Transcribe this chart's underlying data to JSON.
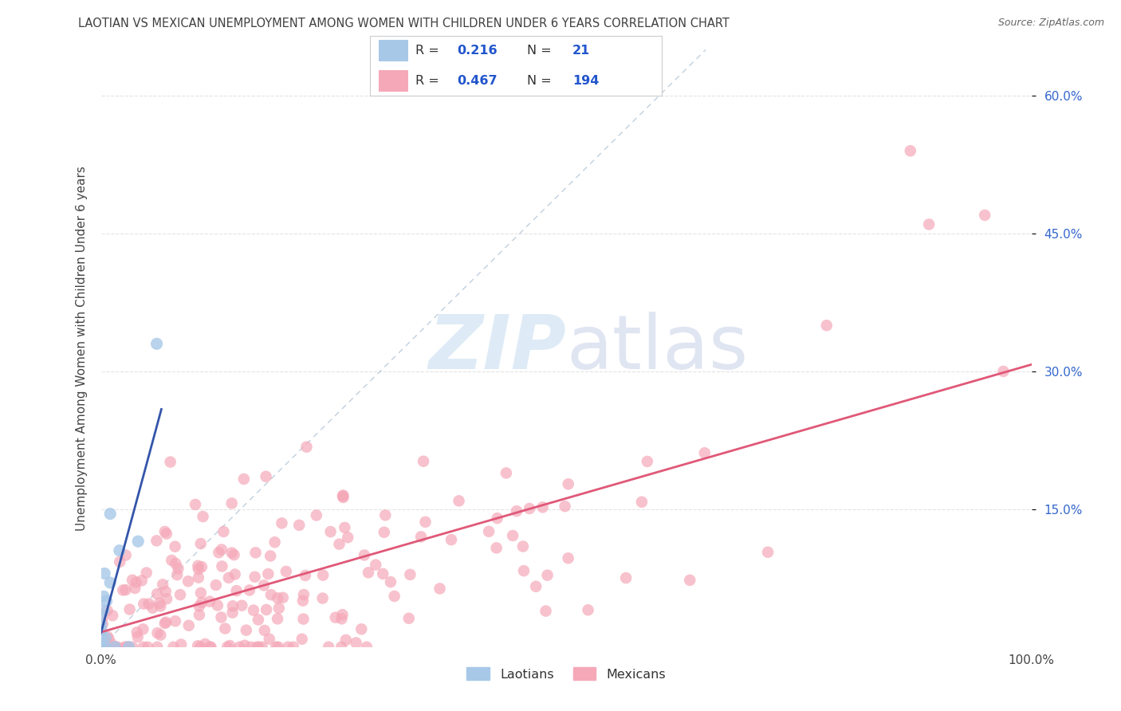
{
  "title": "LAOTIAN VS MEXICAN UNEMPLOYMENT AMONG WOMEN WITH CHILDREN UNDER 6 YEARS CORRELATION CHART",
  "source": "Source: ZipAtlas.com",
  "ylabel": "Unemployment Among Women with Children Under 6 years",
  "xlim": [
    0,
    1.0
  ],
  "ylim": [
    0,
    0.65
  ],
  "xtick_positions": [
    0.0,
    1.0
  ],
  "xtick_labels": [
    "0.0%",
    "100.0%"
  ],
  "ytick_positions": [
    0.15,
    0.3,
    0.45,
    0.6
  ],
  "ytick_labels": [
    "15.0%",
    "30.0%",
    "45.0%",
    "60.0%"
  ],
  "laotian_color": "#a8c8e8",
  "mexican_color": "#f5a8b8",
  "trend_blue_color": "#3355aa",
  "trend_pink_color": "#e05878",
  "ref_line_color": "#b0c4d8",
  "watermark_zip_color": "#c8dff0",
  "watermark_atlas_color": "#c8d0e8",
  "legend_label_laotian": "Laotians",
  "legend_label_mexican": "Mexicans",
  "laotian_R": "0.216",
  "laotian_N": "21",
  "mexican_R": "0.467",
  "mexican_N": "194",
  "title_color": "#404040",
  "source_color": "#666666",
  "ytick_color": "#3366cc",
  "xtick_color": "#444444",
  "grid_color": "#e0e0e0"
}
